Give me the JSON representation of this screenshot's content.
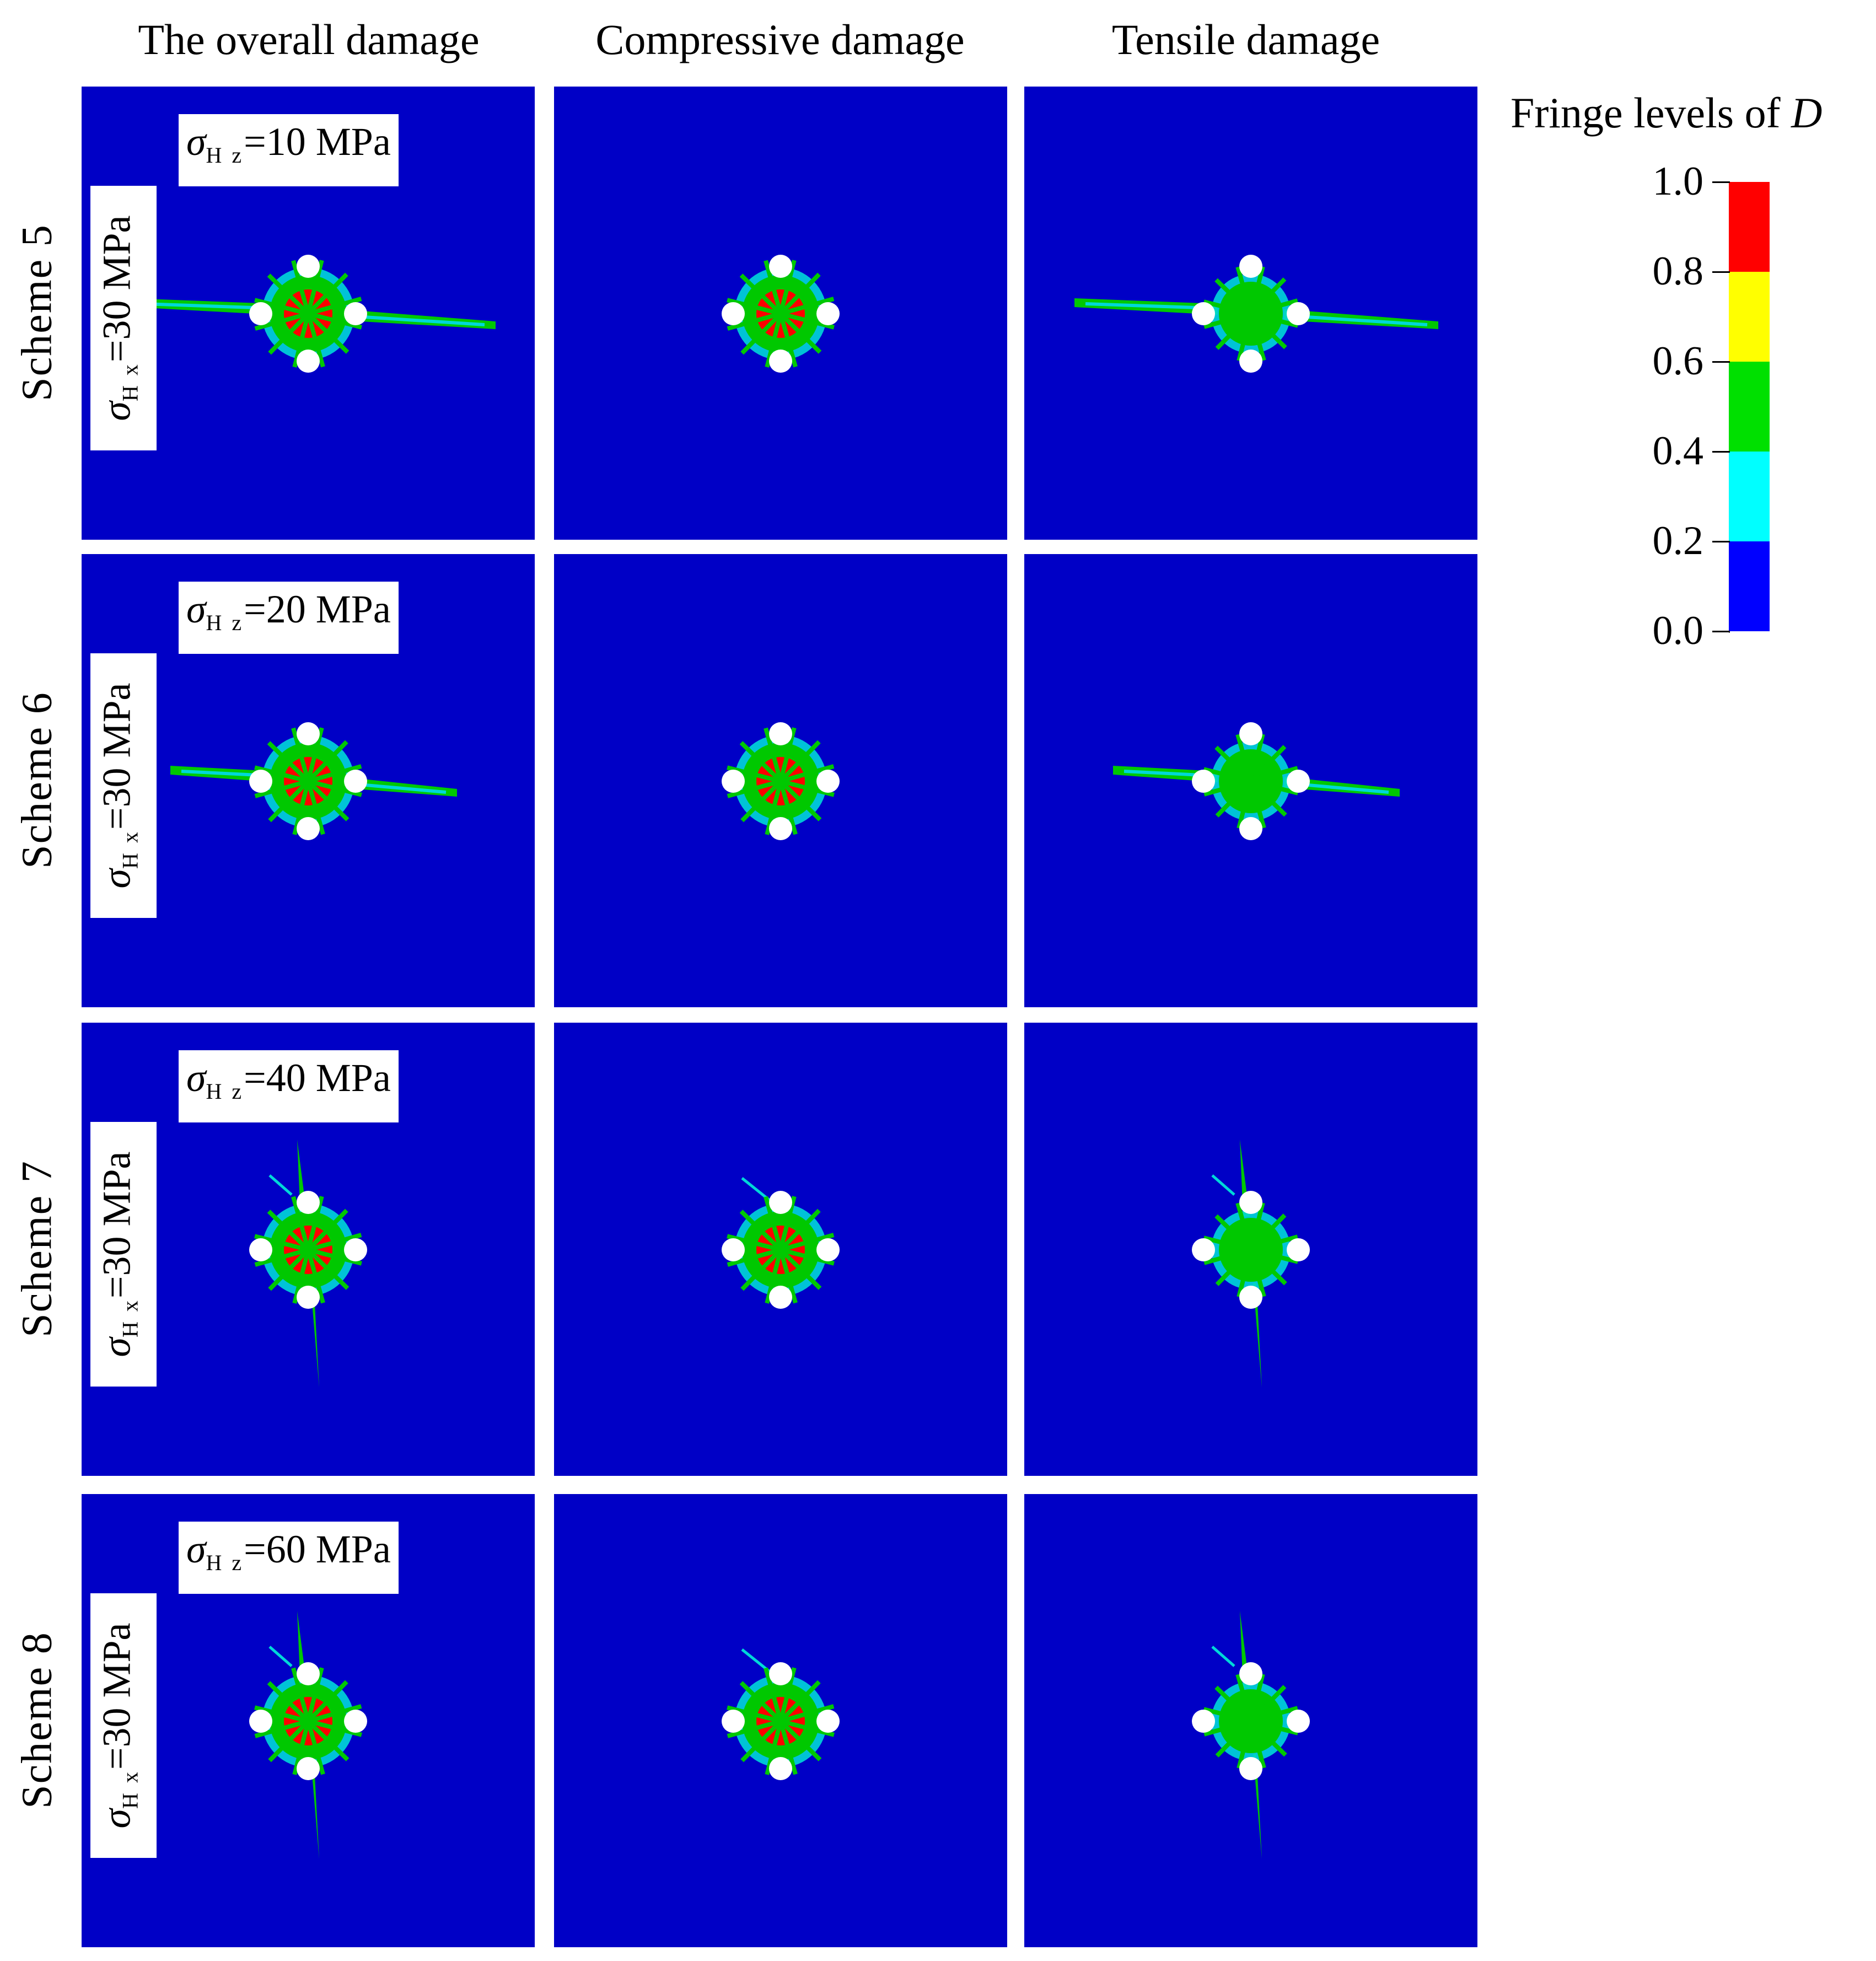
{
  "columns": [
    "The overall damage",
    "Compressive damage",
    "Tensile damage"
  ],
  "rows": [
    {
      "label": "Scheme 5",
      "sigma_z_value": "=10 MPa",
      "sigma_x_value": "=30 MPa"
    },
    {
      "label": "Scheme  6",
      "sigma_z_value": "=20 MPa",
      "sigma_x_value": "=30 MPa"
    },
    {
      "label": "Scheme  7",
      "sigma_z_value": "=40 MPa",
      "sigma_x_value": "=30 MPa"
    },
    {
      "label": "Scheme  8",
      "sigma_z_value": "=60 MPa",
      "sigma_x_value": "=30 MPa"
    }
  ],
  "sigma_symbol": "σ",
  "sub_z": "H z",
  "sub_x": "H x",
  "legend": {
    "title": "Fringe levels of ",
    "variable": "D",
    "ticks": [
      "1.0",
      "0.8",
      "0.6",
      "0.4",
      "0.2",
      "0.0"
    ],
    "colors": [
      "#ff0000",
      "#ffff00",
      "#00e000",
      "#00ffff",
      "#0000ff"
    ]
  },
  "colors": {
    "background_blue": "#0000c6",
    "hole": "#ffffff",
    "red": "#ff0000",
    "green": "#00c800",
    "cyan": "#00d8d8"
  }
}
